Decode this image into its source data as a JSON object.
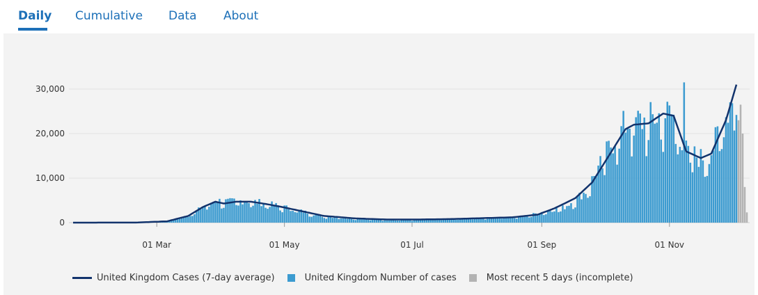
{
  "tabs": [
    {
      "label": "Daily",
      "active": true
    },
    {
      "label": "Cumulative",
      "active": false
    },
    {
      "label": "Data",
      "active": false
    },
    {
      "label": "About",
      "active": false
    }
  ],
  "colors": {
    "accent": "#1d70b8",
    "bars": "#3c9bd0",
    "incomplete": "#b3b3b3",
    "average": "#12336c",
    "panel": "#f3f3f3"
  },
  "legend": {
    "line": "United Kingdom Cases (7-day average)",
    "bars": "United Kingdom Number of cases",
    "incomplete": "Most recent 5 days (incomplete)"
  },
  "chart_data": {
    "type": "bar",
    "title": "",
    "xlabel": "",
    "ylabel": "",
    "ylim": [
      0,
      35000
    ],
    "yticks": [
      0,
      10000,
      20000,
      30000
    ],
    "ytick_labels": [
      "0",
      "10,000",
      "20,000",
      "30,000"
    ],
    "x_range_days": [
      0,
      293
    ],
    "xticks": [
      {
        "day": 40,
        "label": "01 Mar"
      },
      {
        "day": 101,
        "label": "01 May"
      },
      {
        "day": 162,
        "label": "01 Jul"
      },
      {
        "day": 224,
        "label": "01 Sep"
      },
      {
        "day": 285,
        "label": "01 Nov"
      }
    ],
    "series": [
      {
        "name": "United Kingdom Number of cases",
        "kind": "bar",
        "anchors": [
          [
            0,
            0
          ],
          [
            30,
            20
          ],
          [
            45,
            300
          ],
          [
            55,
            1500
          ],
          [
            62,
            3500
          ],
          [
            68,
            5000
          ],
          [
            75,
            4700
          ],
          [
            82,
            5000
          ],
          [
            90,
            4500
          ],
          [
            100,
            3600
          ],
          [
            110,
            2500
          ],
          [
            120,
            1400
          ],
          [
            135,
            900
          ],
          [
            150,
            600
          ],
          [
            170,
            650
          ],
          [
            190,
            900
          ],
          [
            205,
            1200
          ],
          [
            215,
            1300
          ],
          [
            225,
            2500
          ],
          [
            235,
            3500
          ],
          [
            245,
            7000
          ],
          [
            253,
            14000
          ],
          [
            260,
            20000
          ],
          [
            265,
            22500
          ],
          [
            275,
            23000
          ],
          [
            282,
            24500
          ],
          [
            287,
            24000
          ],
          [
            293,
            16000
          ],
          [
            300,
            14500
          ],
          [
            305,
            16000
          ],
          [
            312,
            24000
          ],
          [
            317,
            32000
          ]
        ],
        "noise": 0.18
      },
      {
        "name": "Most recent 5 days (incomplete)",
        "kind": "bar",
        "values": [
          23000,
          26500,
          20000,
          8000,
          2300
        ]
      },
      {
        "name": "United Kingdom Cases (7-day average)",
        "kind": "line",
        "anchors": [
          [
            0,
            0
          ],
          [
            30,
            20
          ],
          [
            45,
            300
          ],
          [
            55,
            1500
          ],
          [
            62,
            3500
          ],
          [
            68,
            4700
          ],
          [
            72,
            4300
          ],
          [
            78,
            4700
          ],
          [
            85,
            4700
          ],
          [
            92,
            4200
          ],
          [
            100,
            3500
          ],
          [
            110,
            2500
          ],
          [
            120,
            1500
          ],
          [
            135,
            950
          ],
          [
            150,
            700
          ],
          [
            165,
            700
          ],
          [
            180,
            800
          ],
          [
            195,
            1000
          ],
          [
            210,
            1200
          ],
          [
            222,
            1800
          ],
          [
            230,
            3200
          ],
          [
            240,
            5500
          ],
          [
            248,
            9000
          ],
          [
            256,
            15000
          ],
          [
            264,
            21000
          ],
          [
            268,
            22000
          ],
          [
            275,
            22300
          ],
          [
            282,
            24500
          ],
          [
            287,
            24000
          ],
          [
            293,
            16000
          ],
          [
            300,
            14500
          ],
          [
            305,
            15500
          ],
          [
            312,
            23000
          ],
          [
            317,
            31000
          ]
        ]
      }
    ]
  }
}
